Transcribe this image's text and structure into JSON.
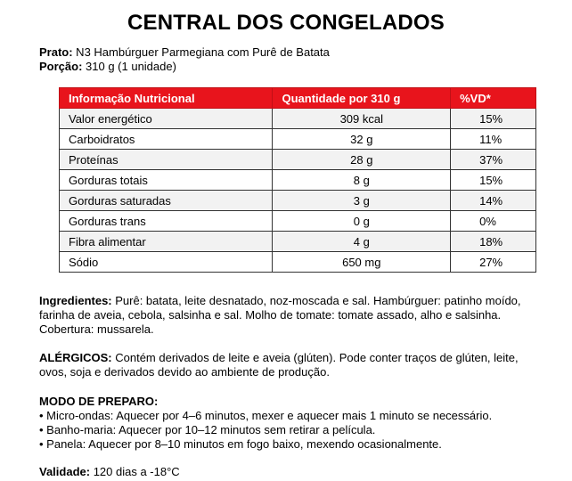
{
  "title": "CENTRAL DOS CONGELADOS",
  "prato": {
    "label": "Prato:",
    "value": " N3 Hambúrguer Parmegiana com Purê de Batata"
  },
  "porcao": {
    "label": "Porção:",
    "value": " 310 g (1 unidade)"
  },
  "table": {
    "headers": [
      "Informação Nutricional",
      "Quantidade por 310 g",
      "%VD*"
    ],
    "rows": [
      {
        "name": "Valor energético",
        "qty": "309 kcal",
        "vd": "15%"
      },
      {
        "name": "Carboidratos",
        "qty": "32 g",
        "vd": "11%"
      },
      {
        "name": "Proteínas",
        "qty": "28 g",
        "vd": "37%"
      },
      {
        "name": "Gorduras totais",
        "qty": "8 g",
        "vd": "15%"
      },
      {
        "name": "Gorduras saturadas",
        "qty": "3 g",
        "vd": "14%"
      },
      {
        "name": "Gorduras trans",
        "qty": "0 g",
        "vd": "0%"
      },
      {
        "name": "Fibra alimentar",
        "qty": "4 g",
        "vd": "18%"
      },
      {
        "name": "Sódio",
        "qty": "650 mg",
        "vd": "27%"
      }
    ]
  },
  "ingredientes": {
    "label": "Ingredientes:",
    "text": " Purê: batata, leite desnatado, noz-moscada e sal. Hambúrguer: patinho moído, farinha de aveia, cebola, salsinha e sal. Molho de tomate: tomate assado, alho e salsinha. Cobertura: mussarela."
  },
  "alergicos": {
    "label": "ALÉRGICOS:",
    "text": " Contém derivados de leite e aveia (glúten). Pode conter traços de glúten, leite, ovos, soja e derivados devido ao ambiente de produção."
  },
  "preparo": {
    "label": "MODO DE PREPARO:",
    "items": [
      "• Micro-ondas: Aquecer por 4–6 minutos, mexer e aquecer mais 1 minuto se necessário.",
      "• Banho-maria: Aquecer por 10–12 minutos sem retirar a película.",
      "• Panela: Aquecer por 8–10 minutos em fogo baixo, mexendo ocasionalmente."
    ]
  },
  "validade": {
    "label": "Validade:",
    "value": " 120 dias a -18°C"
  },
  "colors": {
    "header_red": "#e8141c",
    "row_shade": "#f2f2f2"
  }
}
